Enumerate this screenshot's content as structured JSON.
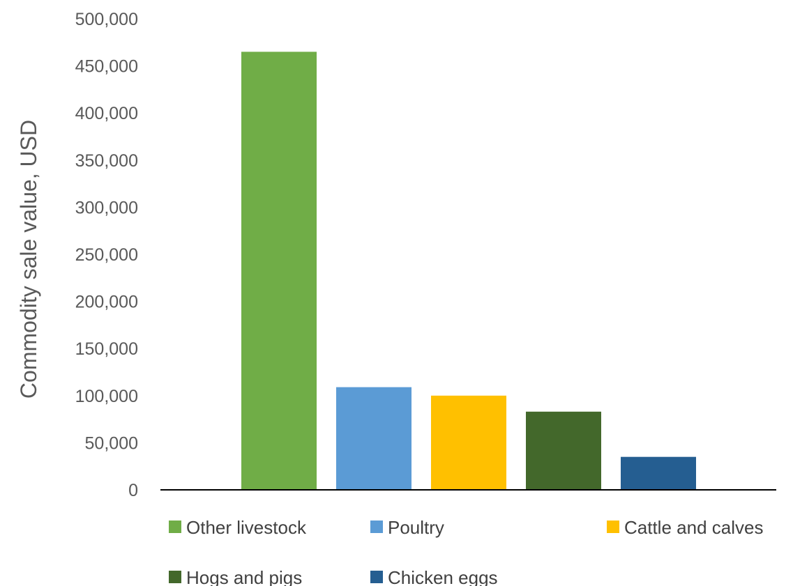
{
  "chart_data": {
    "type": "bar",
    "title": "",
    "xlabel": "",
    "ylabel": "Commodity sale value, USD",
    "ylim": [
      0,
      500000
    ],
    "y_ticks": [
      0,
      50000,
      100000,
      150000,
      200000,
      250000,
      300000,
      350000,
      400000,
      450000,
      500000
    ],
    "y_tick_labels": [
      "0",
      "50,000",
      "100,000",
      "150,000",
      "200,000",
      "250,000",
      "300,000",
      "350,000",
      "400,000",
      "450,000",
      "500,000"
    ],
    "grid": false,
    "legend_position": "bottom",
    "categories": [
      "Other livestock",
      "Poultry",
      "Cattle and calves",
      "Hogs and pigs",
      "Chicken eggs"
    ],
    "values": [
      465000,
      109000,
      100000,
      83000,
      35000
    ],
    "colors": [
      "#70ad47",
      "#5b9bd5",
      "#ffc000",
      "#43682b",
      "#255e91"
    ],
    "legend": [
      {
        "name": "Other livestock",
        "color": "#70ad47"
      },
      {
        "name": "Poultry",
        "color": "#5b9bd5"
      },
      {
        "name": "Cattle and calves",
        "color": "#ffc000"
      },
      {
        "name": "Hogs and pigs",
        "color": "#43682b"
      },
      {
        "name": "Chicken eggs",
        "color": "#255e91"
      }
    ]
  }
}
